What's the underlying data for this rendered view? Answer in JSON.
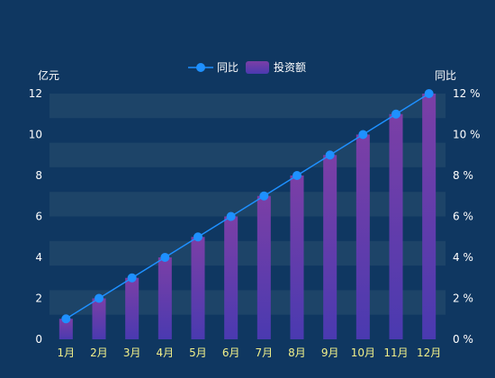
{
  "chart_data": {
    "type": "bar",
    "categories": [
      "1月",
      "2月",
      "3月",
      "4月",
      "5月",
      "6月",
      "7月",
      "8月",
      "9月",
      "10月",
      "11月",
      "12月"
    ],
    "series": [
      {
        "name": "投资额",
        "type": "bar",
        "axis": "left",
        "values": [
          1,
          2,
          3,
          4,
          5,
          6,
          7,
          8,
          9,
          10,
          11,
          12
        ]
      },
      {
        "name": "同比",
        "type": "line",
        "axis": "right",
        "values": [
          1,
          2,
          3,
          4,
          5,
          6,
          7,
          8,
          9,
          10,
          11,
          12
        ]
      }
    ],
    "ylabel_left": "亿元",
    "ylabel_right": "同比",
    "ylim_left": [
      0,
      12
    ],
    "ylim_right": [
      0,
      12
    ],
    "yticks_left": [
      "0",
      "2",
      "4",
      "6",
      "8",
      "10",
      "12"
    ],
    "yticks_right": [
      "0 %",
      "2 %",
      "4 %",
      "6 %",
      "8 %",
      "10 %",
      "12 %"
    ],
    "legend": [
      "同比",
      "投资额"
    ],
    "legend_position": "top-center",
    "colors": {
      "background": "#0f3761",
      "band": "#1d4468",
      "bar_top": "#7b3fa6",
      "bar_bottom": "#4a3ab0",
      "line": "#1e90ff",
      "x_tick_text": "#f2f08a",
      "y_tick_text": "#ffffff"
    }
  }
}
